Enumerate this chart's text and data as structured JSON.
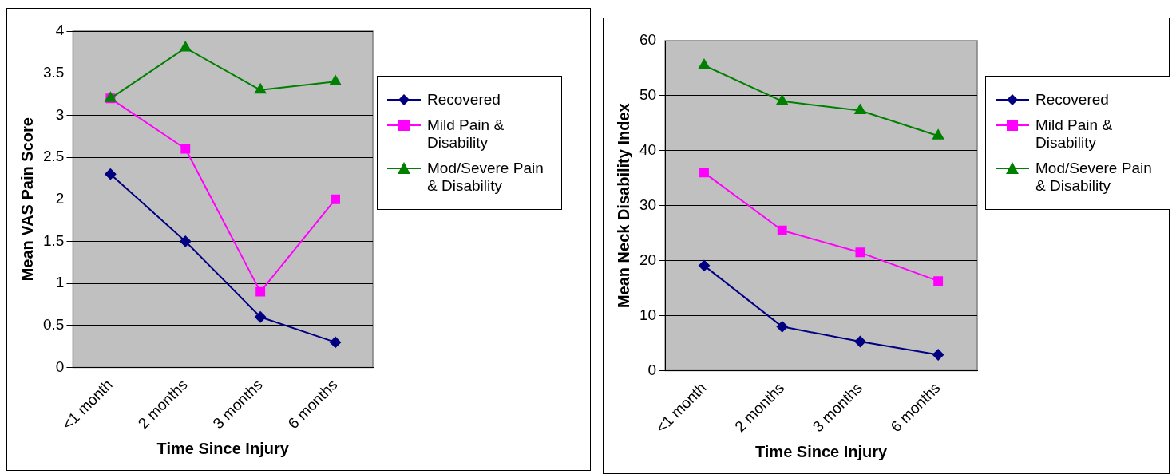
{
  "chart_data": [
    {
      "type": "line",
      "xlabel": "Time Since Injury",
      "ylabel": "Mean VAS Pain Score",
      "categories": [
        "<1 month",
        "2 months",
        "3 months",
        "6 months"
      ],
      "series": [
        {
          "name": "Recovered",
          "color": "#000080",
          "marker": "diamond",
          "values": [
            2.3,
            1.5,
            0.6,
            0.3
          ]
        },
        {
          "name": "Mild Pain & Disability",
          "color": "#ff00ff",
          "marker": "square",
          "values": [
            3.2,
            2.6,
            0.9,
            2.0
          ]
        },
        {
          "name": "Mod/Severe Pain & Disability",
          "color": "#008000",
          "marker": "triangle",
          "values": [
            3.2,
            3.8,
            3.3,
            3.4
          ]
        }
      ],
      "ylim": [
        0,
        4
      ],
      "yticks": [
        0,
        0.5,
        1,
        1.5,
        2,
        2.5,
        3,
        3.5,
        4
      ],
      "grid": "y",
      "legend": "right",
      "line_style": "solid"
    },
    {
      "type": "line",
      "xlabel": "Time Since Injury",
      "ylabel": "Mean Neck Disability Index",
      "categories": [
        "<1 month",
        "2 months",
        "3 months",
        "6 months"
      ],
      "series": [
        {
          "name": "Recovered",
          "color": "#000080",
          "marker": "diamond",
          "values": [
            19.1,
            8,
            5.3,
            2.9
          ]
        },
        {
          "name": "Mild Pain & Disability",
          "color": "#ff00ff",
          "marker": "square",
          "values": [
            36,
            25.5,
            21.5,
            16.3
          ]
        },
        {
          "name": "Mod/Severe Pain & Disability",
          "color": "#008000",
          "marker": "triangle",
          "values": [
            55.5,
            49,
            47.3,
            42.7
          ]
        }
      ],
      "ylim": [
        0,
        60
      ],
      "yticks": [
        0,
        10,
        20,
        30,
        40,
        50,
        60
      ],
      "grid": "y",
      "legend": "right",
      "line_style": "solid"
    }
  ]
}
